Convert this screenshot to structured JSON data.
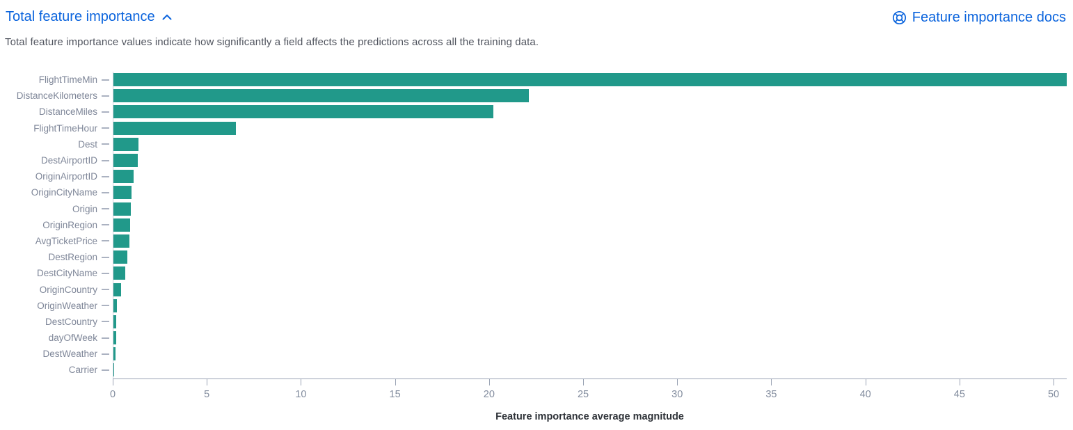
{
  "header": {
    "title": "Total feature importance",
    "docs_link_label": "Feature importance docs"
  },
  "description": "Total feature importance values indicate how significantly a field affects the predictions across all the training data.",
  "icons": {
    "collapse": "chevron-up-icon",
    "docs": "lifebuoy-icon"
  },
  "colors": {
    "link_blue": "#0b64dd",
    "bar_teal": "#21998a",
    "axis_gray": "#9aa3b4",
    "label_gray": "#7e8698"
  },
  "chart_data": {
    "type": "bar",
    "orientation": "horizontal",
    "title": "",
    "xlabel": "Feature importance average magnitude",
    "ylabel": "",
    "grid": false,
    "legend": "none",
    "xlim": [
      0,
      50.7
    ],
    "x_ticks": [
      0,
      5,
      10,
      15,
      20,
      25,
      30,
      35,
      40,
      45,
      50
    ],
    "bar_color": "#21998a",
    "categories": [
      "FlightTimeMin",
      "DistanceKilometers",
      "DistanceMiles",
      "FlightTimeHour",
      "Dest",
      "DestAirportID",
      "OriginAirportID",
      "OriginCityName",
      "Origin",
      "OriginRegion",
      "AvgTicketPrice",
      "DestRegion",
      "DestCityName",
      "OriginCountry",
      "OriginWeather",
      "DestCountry",
      "dayOfWeek",
      "DestWeather",
      "Carrier"
    ],
    "values": [
      50.7,
      22.1,
      20.2,
      6.5,
      1.35,
      1.3,
      1.07,
      0.97,
      0.94,
      0.88,
      0.84,
      0.74,
      0.64,
      0.41,
      0.18,
      0.15,
      0.16,
      0.12,
      0.04
    ]
  }
}
